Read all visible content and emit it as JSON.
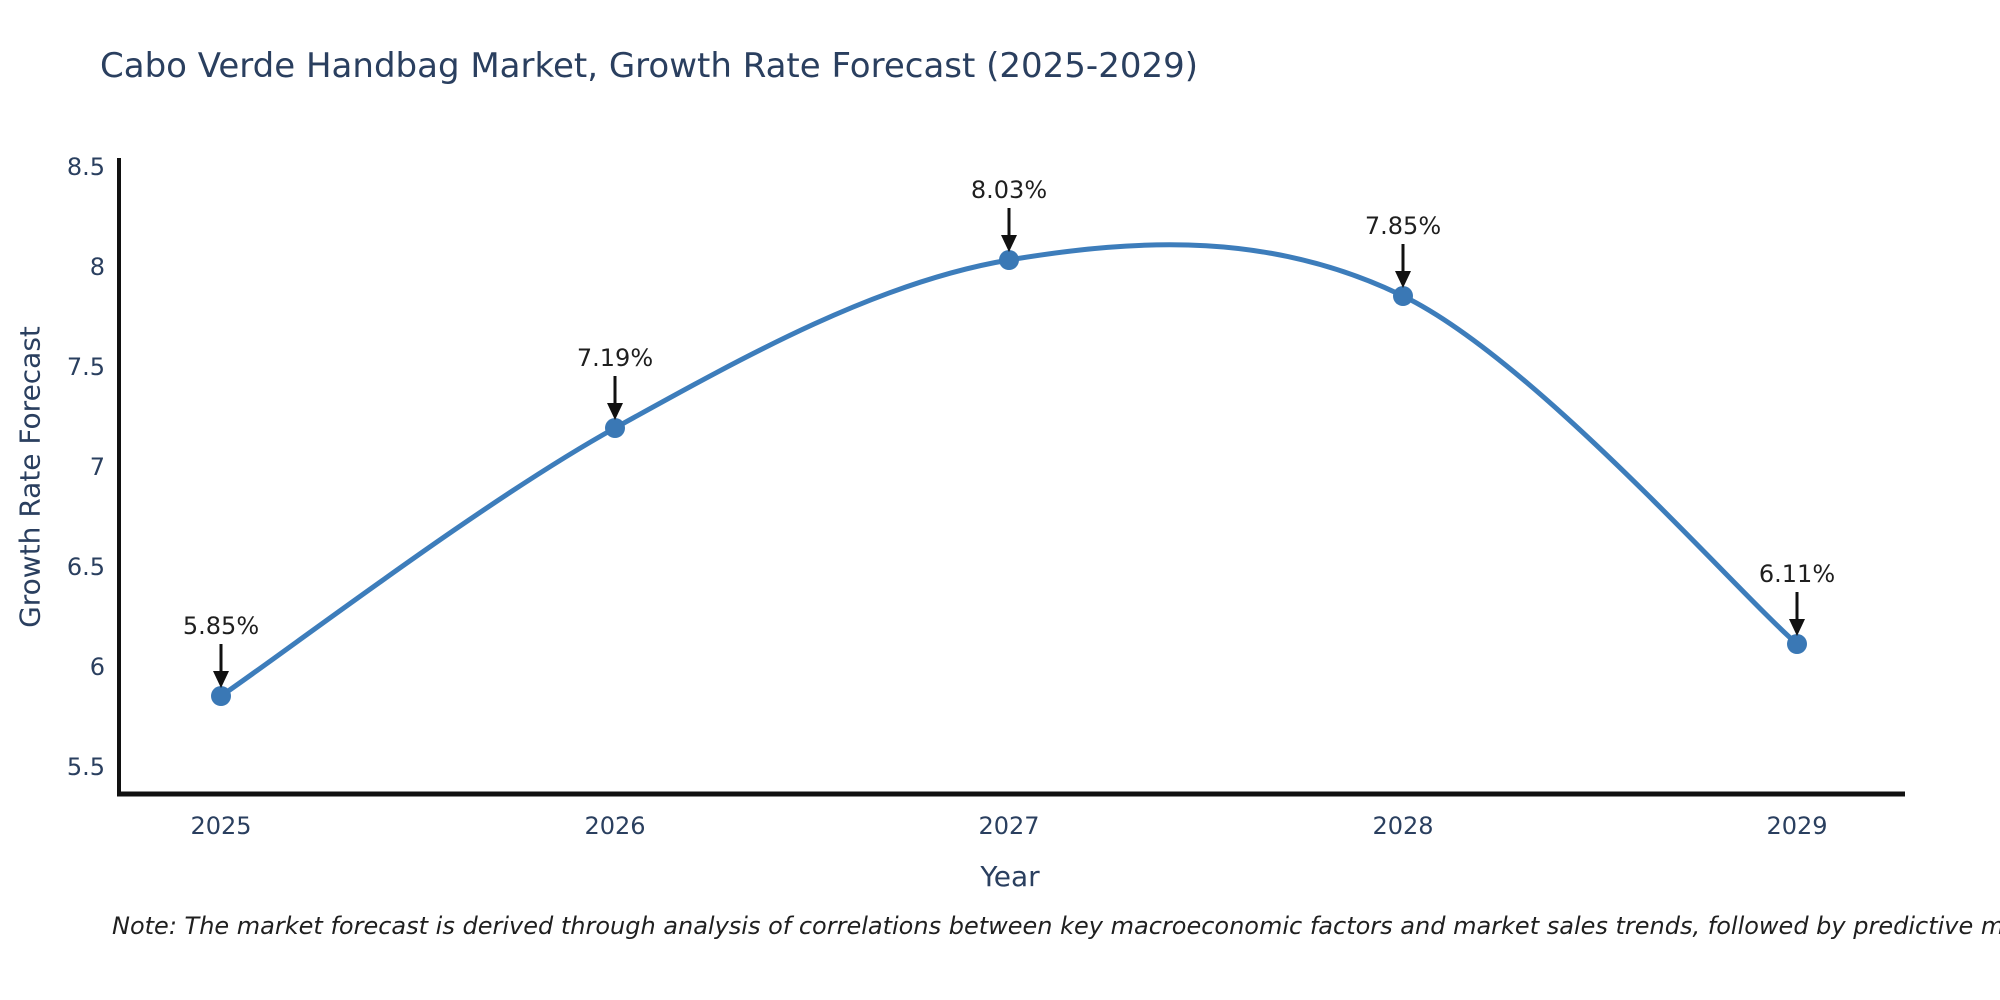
{
  "chart_data": {
    "type": "line",
    "title": "Cabo Verde Handbag Market, Growth Rate Forecast (2025-2029)",
    "xlabel": "Year",
    "ylabel": "Growth Rate Forecast",
    "categories": [
      "2025",
      "2026",
      "2027",
      "2028",
      "2029"
    ],
    "values": [
      5.85,
      7.19,
      8.03,
      7.85,
      6.11
    ],
    "point_labels": [
      "5.85%",
      "7.19%",
      "8.03%",
      "7.85%",
      "6.11%"
    ],
    "yticks": [
      "8.5",
      "8",
      "7.5",
      "7",
      "6.5",
      "6",
      "5.5"
    ],
    "ylim": [
      5.35,
      8.55
    ],
    "grid": false,
    "legend": "none",
    "line_shape": "spline",
    "colors": {
      "line": "#3d7dbb",
      "marker": "#3a78b5",
      "arrow": "#111111",
      "axis": "#111111",
      "text": "#2a3f5f"
    }
  },
  "footnote": "Note: The market forecast is derived through analysis of correlations between key macroeconomic factors and market sales trends, followed by predictive modeling to project future sales trends."
}
